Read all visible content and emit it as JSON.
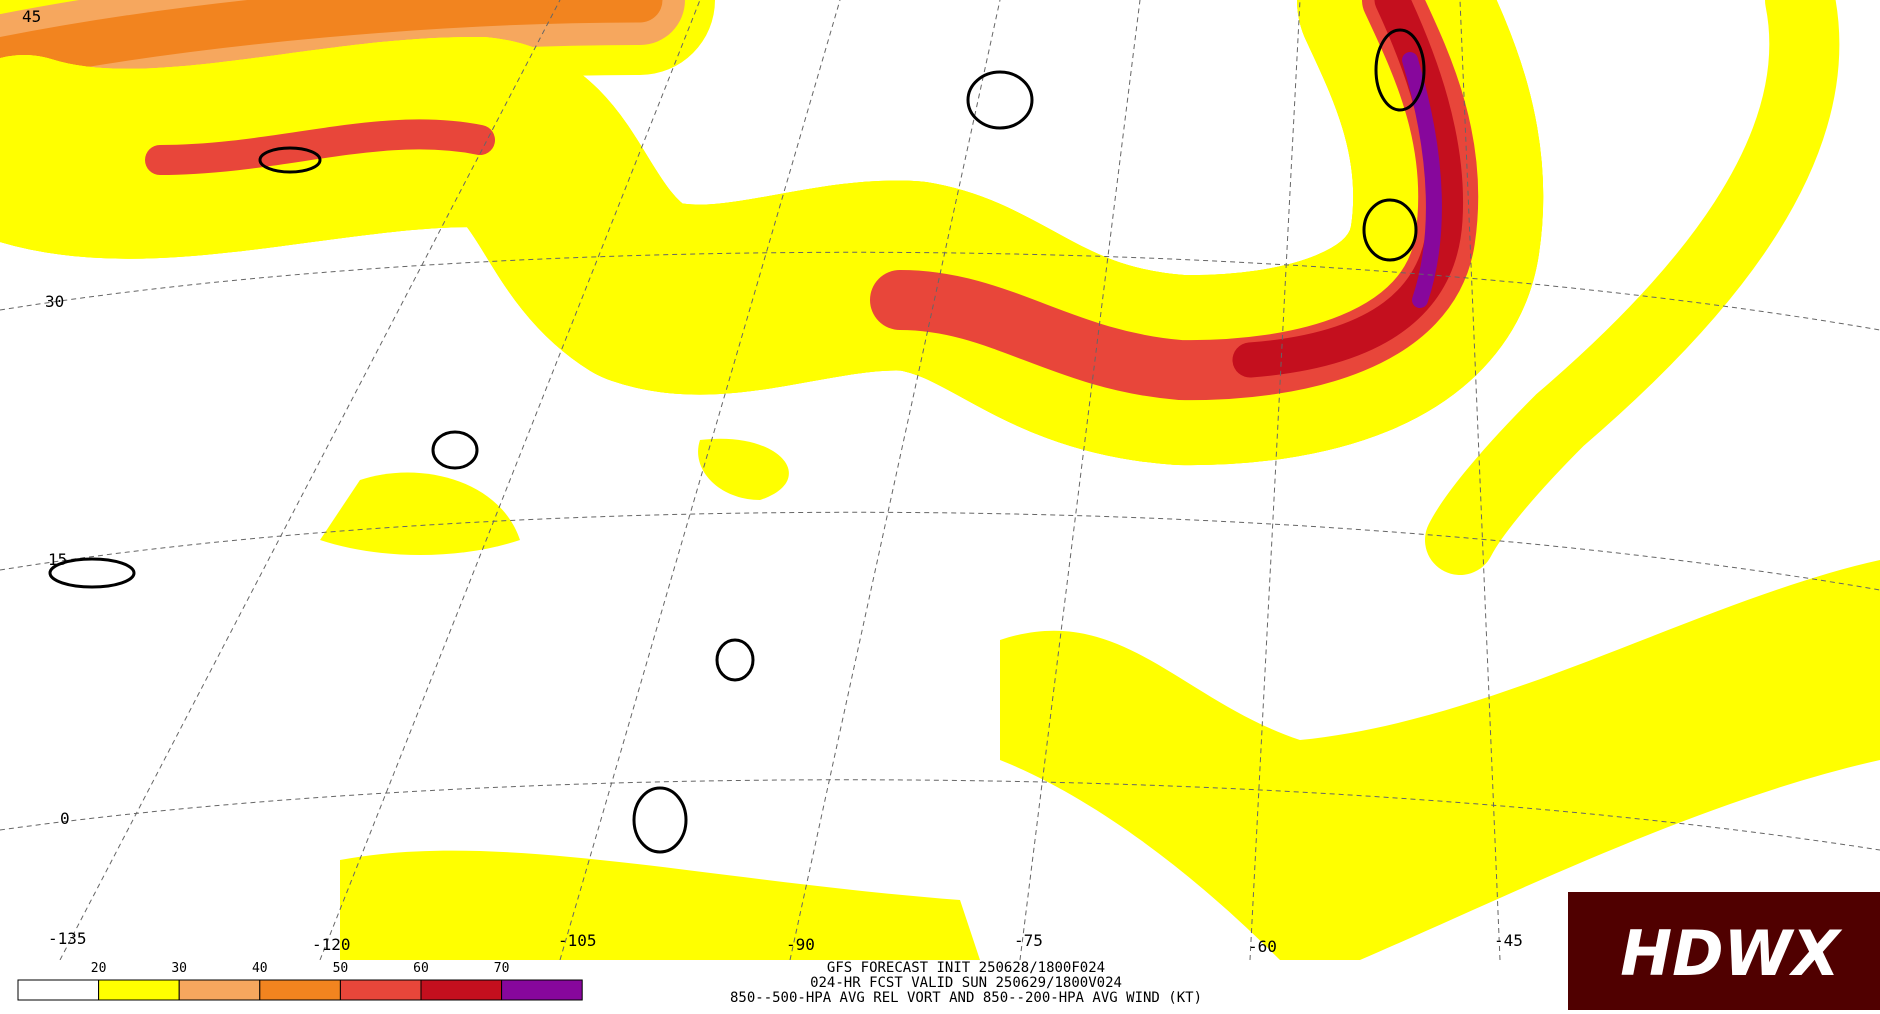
{
  "map": {
    "lat_labels": [
      "45",
      "30",
      "15",
      "0"
    ],
    "lon_labels": [
      "-135",
      "-120",
      "-105",
      "-90",
      "-75",
      "-60",
      "-45"
    ],
    "colorbar": {
      "levels": [
        20,
        30,
        40,
        50,
        60,
        70
      ],
      "colors": [
        "#ffffff",
        "#ffff00",
        "#f6a75e",
        "#f2841f",
        "#e8463a",
        "#c40f1e",
        "#87079c"
      ]
    },
    "footer": {
      "line1": "GFS FORECAST INIT 250628/1800F024",
      "line2": "024-HR FCST VALID SUN 250629/1800V024",
      "line3": "850--500-HPA AVG REL VORT AND 850--200-HPA AVG WIND (KT)"
    },
    "logo": "HDWX"
  }
}
